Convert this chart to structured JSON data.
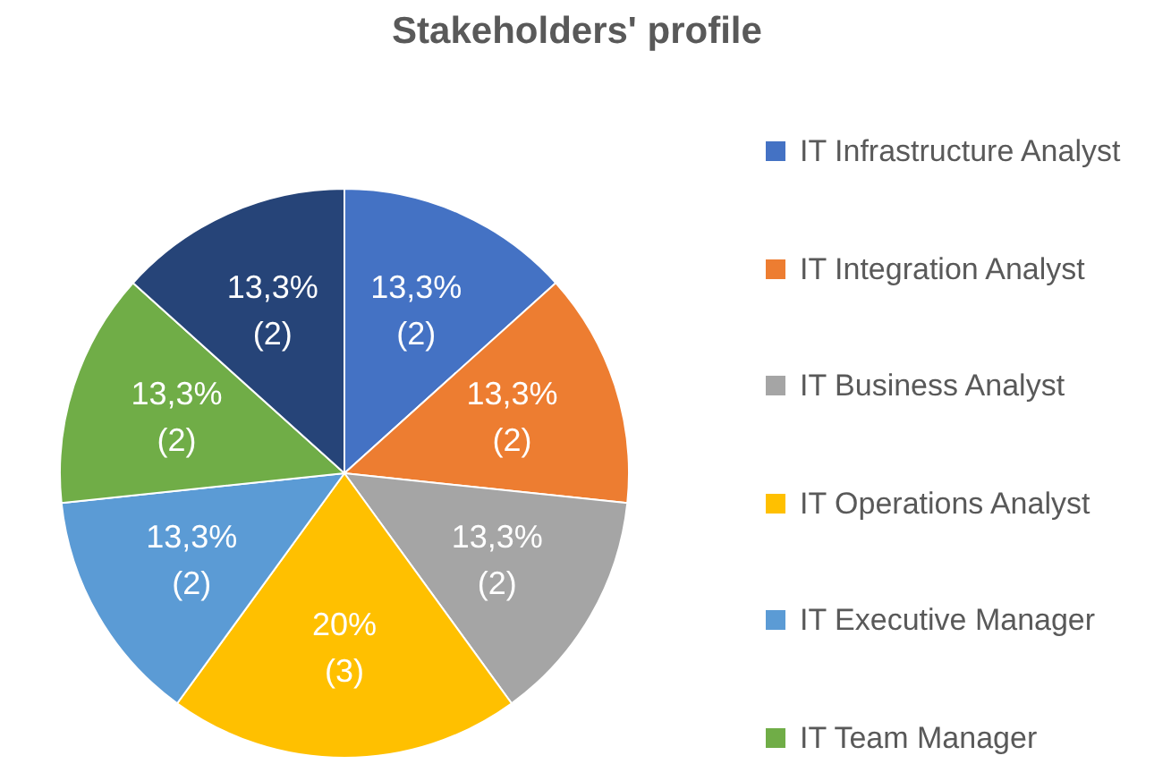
{
  "chart_data": {
    "type": "pie",
    "title": "Stakeholders' profile",
    "categories": [
      "IT Infrastructure Analyst",
      "IT Integration Analyst",
      "IT Business Analyst",
      "IT Operations Analyst",
      "IT Executive Manager",
      "IT Team Manager",
      null
    ],
    "values": [
      2,
      2,
      2,
      3,
      2,
      2,
      2
    ],
    "value_labels": [
      "13,3%\n(2)",
      "13,3%\n(2)",
      "13,3%\n(2)",
      "20%\n(3)",
      "13,3%\n(2)",
      "13,3%\n(2)",
      "13,3%\n(2)"
    ],
    "colors": [
      "#4472c4",
      "#ed7d31",
      "#a5a5a5",
      "#ffc000",
      "#5b9bd5",
      "#70ad47",
      "#264478"
    ],
    "legend": "right"
  }
}
